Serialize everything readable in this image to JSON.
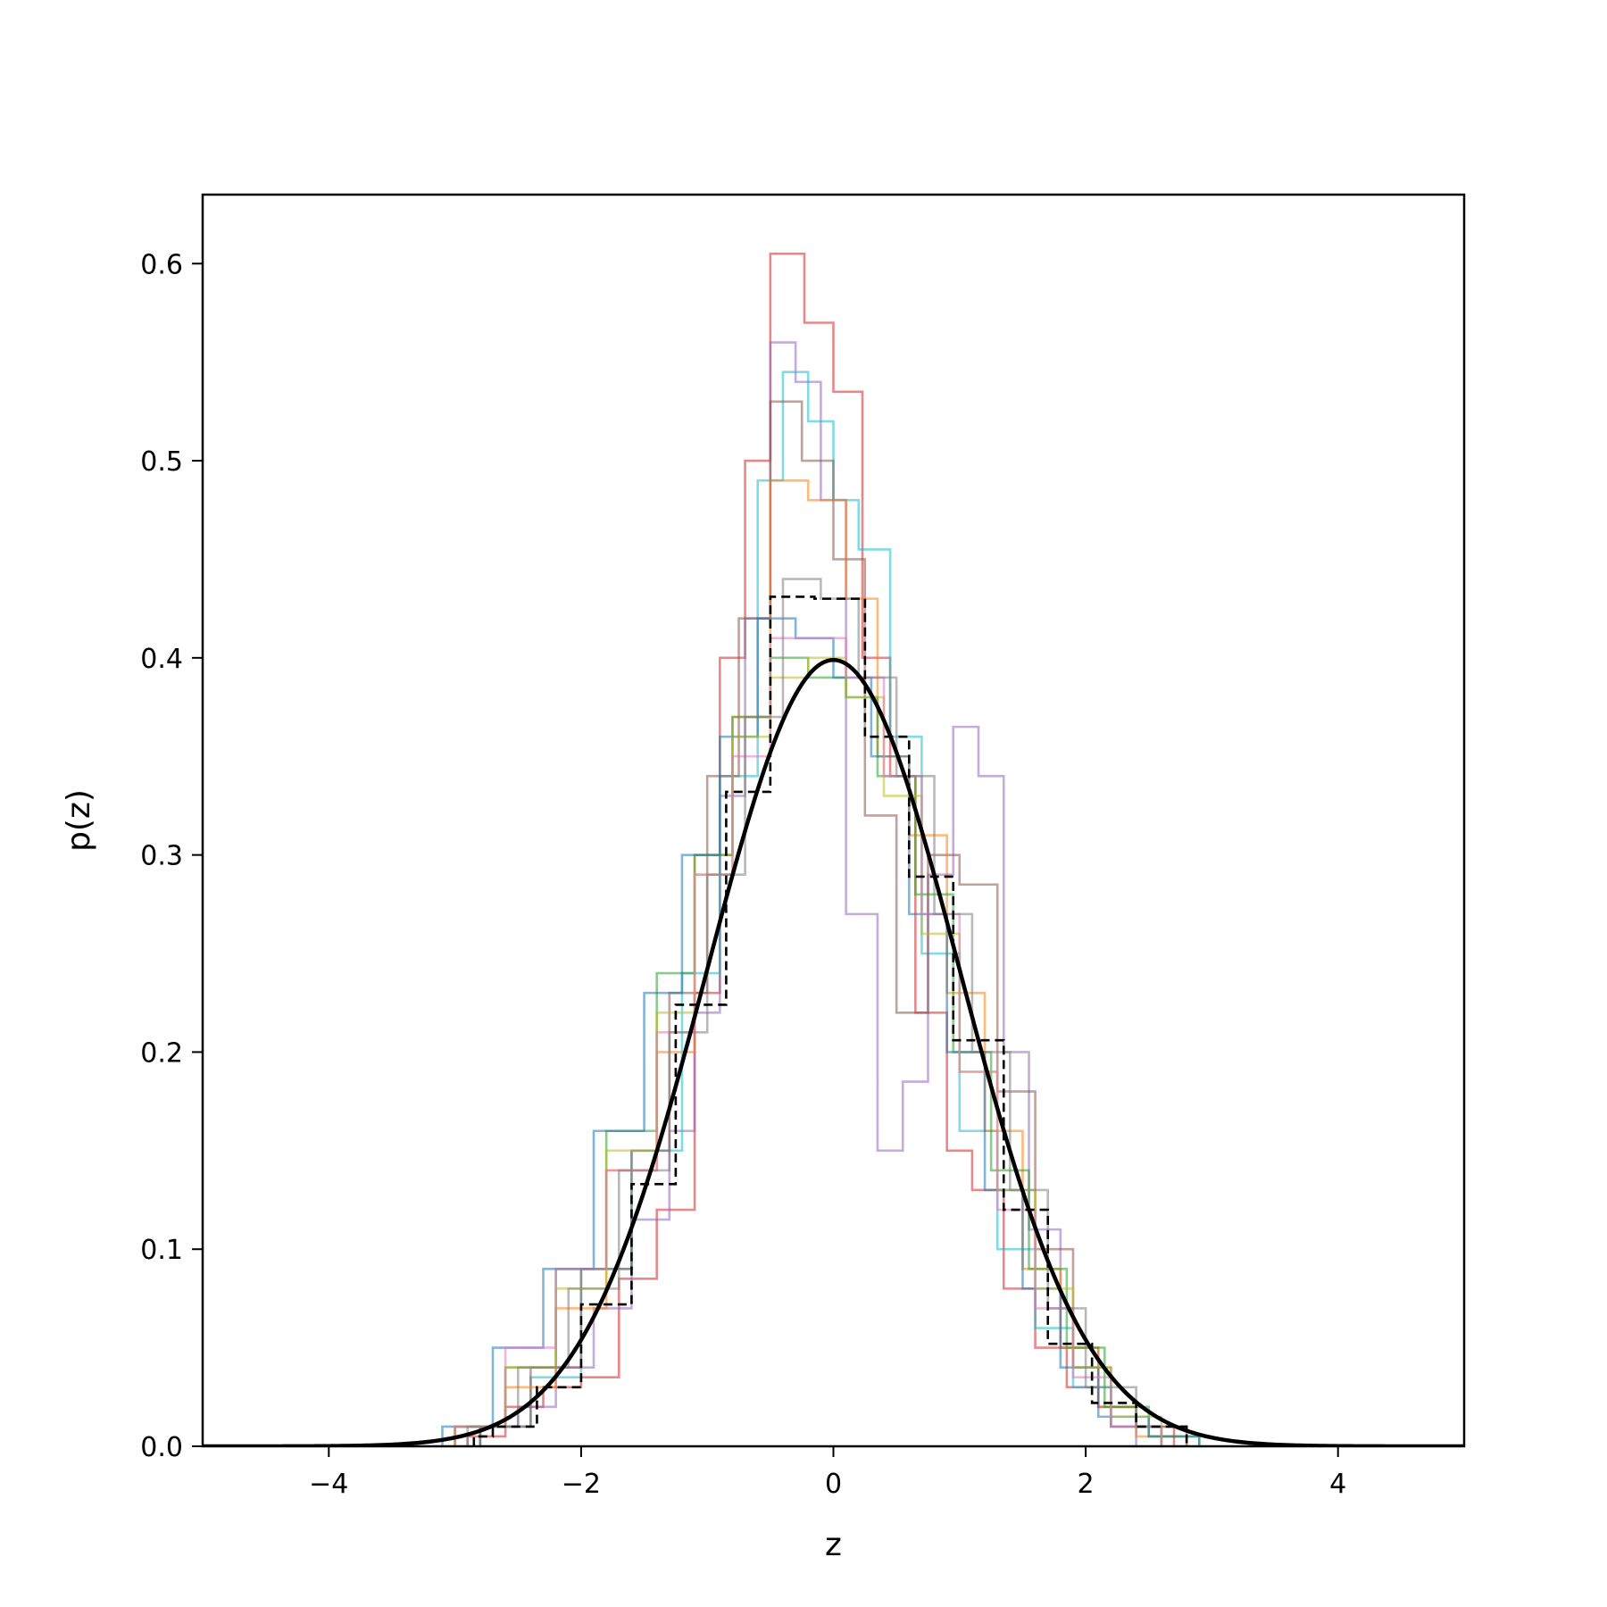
{
  "chart_data": {
    "type": "line",
    "title": "",
    "xlabel": "z",
    "ylabel": "p(z)",
    "xlim": [
      -5,
      5
    ],
    "ylim": [
      0,
      0.635
    ],
    "xticks": [
      -4,
      -2,
      0,
      2,
      4
    ],
    "xtick_labels": [
      "−4",
      "−2",
      "0",
      "2",
      "4"
    ],
    "yticks": [
      0.0,
      0.1,
      0.2,
      0.3,
      0.4,
      0.5,
      0.6
    ],
    "ytick_labels": [
      "0.0",
      "0.1",
      "0.2",
      "0.3",
      "0.4",
      "0.5",
      "0.6"
    ],
    "grid": false,
    "legend": "none",
    "series": [
      {
        "kind": "histogram-step",
        "color": "#d62728",
        "opacity": 0.55,
        "bin_edges": [
          -2.9,
          -2.6,
          -2.3,
          -2.0,
          -1.7,
          -1.4,
          -1.1,
          -0.9,
          -0.7,
          -0.5,
          -0.23,
          0.0,
          0.23,
          0.45,
          0.65,
          0.9,
          1.1,
          1.35,
          1.6,
          1.85,
          2.1,
          2.4,
          2.7
        ],
        "values": [
          0.005,
          0.02,
          0.03,
          0.035,
          0.085,
          0.12,
          0.23,
          0.4,
          0.5,
          0.605,
          0.57,
          0.535,
          0.4,
          0.34,
          0.22,
          0.15,
          0.13,
          0.08,
          0.05,
          0.03,
          0.02,
          0.01
        ]
      },
      {
        "kind": "histogram-step",
        "color": "#9467bd",
        "opacity": 0.55,
        "bin_edges": [
          -2.8,
          -2.5,
          -2.2,
          -1.9,
          -1.6,
          -1.3,
          -1.1,
          -0.9,
          -0.7,
          -0.5,
          -0.3,
          -0.1,
          0.1,
          0.35,
          0.55,
          0.75,
          0.95,
          1.15,
          1.35,
          1.55,
          1.8,
          2.1,
          2.4
        ],
        "values": [
          0.01,
          0.02,
          0.04,
          0.07,
          0.115,
          0.16,
          0.22,
          0.33,
          0.42,
          0.56,
          0.54,
          0.48,
          0.27,
          0.15,
          0.185,
          0.29,
          0.365,
          0.34,
          0.2,
          0.11,
          0.05,
          0.02
        ]
      },
      {
        "kind": "histogram-step",
        "color": "#17becf",
        "opacity": 0.55,
        "bin_edges": [
          -2.8,
          -2.4,
          -2.0,
          -1.6,
          -1.2,
          -0.9,
          -0.6,
          -0.4,
          -0.2,
          0.0,
          0.2,
          0.45,
          0.7,
          1.0,
          1.3,
          1.6,
          1.9,
          2.2,
          2.6
        ],
        "values": [
          0.01,
          0.035,
          0.09,
          0.15,
          0.24,
          0.34,
          0.49,
          0.545,
          0.52,
          0.48,
          0.455,
          0.36,
          0.25,
          0.16,
          0.1,
          0.06,
          0.03,
          0.01
        ]
      },
      {
        "kind": "histogram-step",
        "color": "#8c564b",
        "opacity": 0.55,
        "bin_edges": [
          -2.8,
          -2.4,
          -2.0,
          -1.6,
          -1.3,
          -1.0,
          -0.75,
          -0.5,
          -0.25,
          0.0,
          0.25,
          0.5,
          0.75,
          1.0,
          1.3,
          1.6,
          1.9,
          2.2,
          2.6
        ],
        "values": [
          0.01,
          0.04,
          0.09,
          0.15,
          0.23,
          0.34,
          0.42,
          0.53,
          0.5,
          0.45,
          0.32,
          0.22,
          0.3,
          0.285,
          0.18,
          0.1,
          0.04,
          0.01
        ]
      },
      {
        "kind": "histogram-step",
        "color": "#ff7f0e",
        "opacity": 0.55,
        "bin_edges": [
          -3.0,
          -2.6,
          -2.2,
          -1.8,
          -1.4,
          -1.1,
          -0.8,
          -0.5,
          -0.2,
          0.1,
          0.35,
          0.6,
          0.9,
          1.2,
          1.5,
          1.8,
          2.1,
          2.4,
          2.8
        ],
        "values": [
          0.01,
          0.03,
          0.07,
          0.14,
          0.2,
          0.3,
          0.37,
          0.49,
          0.48,
          0.43,
          0.35,
          0.31,
          0.23,
          0.16,
          0.09,
          0.05,
          0.02,
          0.005
        ]
      },
      {
        "kind": "histogram-step",
        "color": "#2ca02c",
        "opacity": 0.55,
        "bin_edges": [
          -3.0,
          -2.6,
          -2.2,
          -1.8,
          -1.4,
          -1.1,
          -0.8,
          -0.5,
          -0.2,
          0.1,
          0.35,
          0.65,
          0.95,
          1.25,
          1.55,
          1.85,
          2.15,
          2.5,
          2.9
        ],
        "values": [
          0.01,
          0.04,
          0.09,
          0.16,
          0.24,
          0.3,
          0.37,
          0.4,
          0.39,
          0.38,
          0.34,
          0.28,
          0.2,
          0.14,
          0.09,
          0.05,
          0.02,
          0.005
        ]
      },
      {
        "kind": "histogram-step",
        "color": "#1f77b4",
        "opacity": 0.55,
        "bin_edges": [
          -3.1,
          -2.7,
          -2.3,
          -1.9,
          -1.5,
          -1.2,
          -0.9,
          -0.6,
          -0.3,
          0.0,
          0.3,
          0.6,
          0.9,
          1.2,
          1.5,
          1.8,
          2.1,
          2.5,
          2.9
        ],
        "values": [
          0.01,
          0.05,
          0.09,
          0.16,
          0.23,
          0.3,
          0.36,
          0.42,
          0.41,
          0.39,
          0.35,
          0.27,
          0.2,
          0.13,
          0.08,
          0.04,
          0.015,
          0.005
        ]
      },
      {
        "kind": "histogram-step",
        "color": "#bcbd22",
        "opacity": 0.55,
        "bin_edges": [
          -3.0,
          -2.6,
          -2.2,
          -1.8,
          -1.4,
          -1.1,
          -0.8,
          -0.5,
          -0.2,
          0.1,
          0.4,
          0.7,
          1.0,
          1.3,
          1.6,
          1.9,
          2.2,
          2.6
        ],
        "values": [
          0.01,
          0.04,
          0.08,
          0.15,
          0.22,
          0.29,
          0.36,
          0.39,
          0.4,
          0.38,
          0.33,
          0.26,
          0.19,
          0.13,
          0.08,
          0.04,
          0.015
        ]
      },
      {
        "kind": "histogram-step",
        "color": "#e377c2",
        "opacity": 0.55,
        "bin_edges": [
          -3.0,
          -2.6,
          -2.2,
          -1.8,
          -1.4,
          -1.1,
          -0.8,
          -0.5,
          -0.2,
          0.1,
          0.4,
          0.7,
          1.0,
          1.3,
          1.6,
          1.9,
          2.2,
          2.6
        ],
        "values": [
          0.01,
          0.05,
          0.09,
          0.14,
          0.21,
          0.29,
          0.35,
          0.41,
          0.41,
          0.39,
          0.34,
          0.27,
          0.19,
          0.12,
          0.07,
          0.035,
          0.01
        ]
      },
      {
        "kind": "histogram-step",
        "color": "#7f7f7f",
        "opacity": 0.55,
        "bin_edges": [
          -2.9,
          -2.5,
          -2.1,
          -1.7,
          -1.3,
          -1.0,
          -0.7,
          -0.4,
          -0.1,
          0.2,
          0.5,
          0.8,
          1.1,
          1.4,
          1.7,
          2.0,
          2.4,
          2.8
        ],
        "values": [
          0.01,
          0.04,
          0.08,
          0.14,
          0.21,
          0.29,
          0.37,
          0.44,
          0.43,
          0.39,
          0.34,
          0.27,
          0.2,
          0.13,
          0.07,
          0.03,
          0.01
        ]
      },
      {
        "kind": "histogram-step",
        "color": "#000000",
        "opacity": 1.0,
        "dashed": true,
        "bin_edges": [
          -2.85,
          -2.7,
          -2.35,
          -2.0,
          -1.6,
          -1.25,
          -0.85,
          -0.5,
          -0.15,
          0.25,
          0.6,
          0.95,
          1.35,
          1.7,
          2.05,
          2.4,
          2.8
        ],
        "values": [
          0.005,
          0.01,
          0.03,
          0.072,
          0.133,
          0.224,
          0.332,
          0.431,
          0.43,
          0.36,
          0.289,
          0.206,
          0.12,
          0.052,
          0.022,
          0.01
        ]
      },
      {
        "kind": "pdf-curve",
        "color": "#000000",
        "opacity": 1.0,
        "function": "standard normal",
        "mean": 0,
        "std": 1
      }
    ]
  }
}
